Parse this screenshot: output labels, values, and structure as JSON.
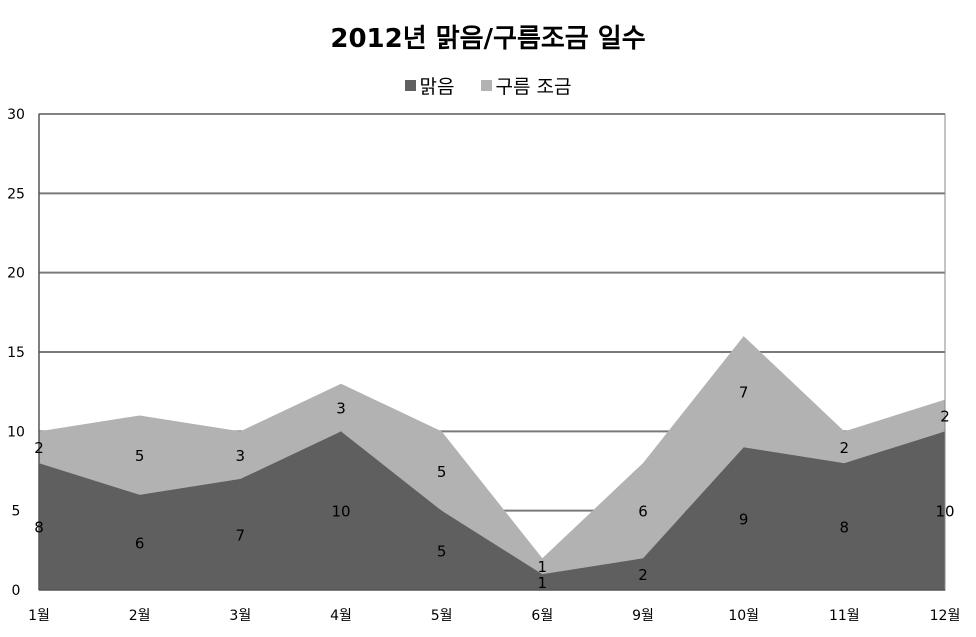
{
  "chart_data": {
    "type": "area",
    "stacked": true,
    "title": "2012년 맑음/구름조금 일수",
    "xlabel": "",
    "ylabel": "",
    "categories": [
      "1월",
      "2월",
      "3월",
      "4월",
      "5월",
      "6월",
      "9월",
      "10월",
      "11월",
      "12월"
    ],
    "series": [
      {
        "name": "맑음",
        "values": [
          8,
          6,
          7,
          10,
          5,
          1,
          2,
          9,
          8,
          10
        ],
        "color": "#5f5f5f"
      },
      {
        "name": "구름 조금",
        "values": [
          2,
          5,
          3,
          3,
          5,
          1,
          6,
          7,
          2,
          2
        ],
        "color": "#b2b2b2"
      }
    ],
    "ylim": [
      0,
      30
    ],
    "yticks": [
      0,
      5,
      10,
      15,
      20,
      25,
      30
    ],
    "grid": true,
    "legend_position": "top"
  }
}
